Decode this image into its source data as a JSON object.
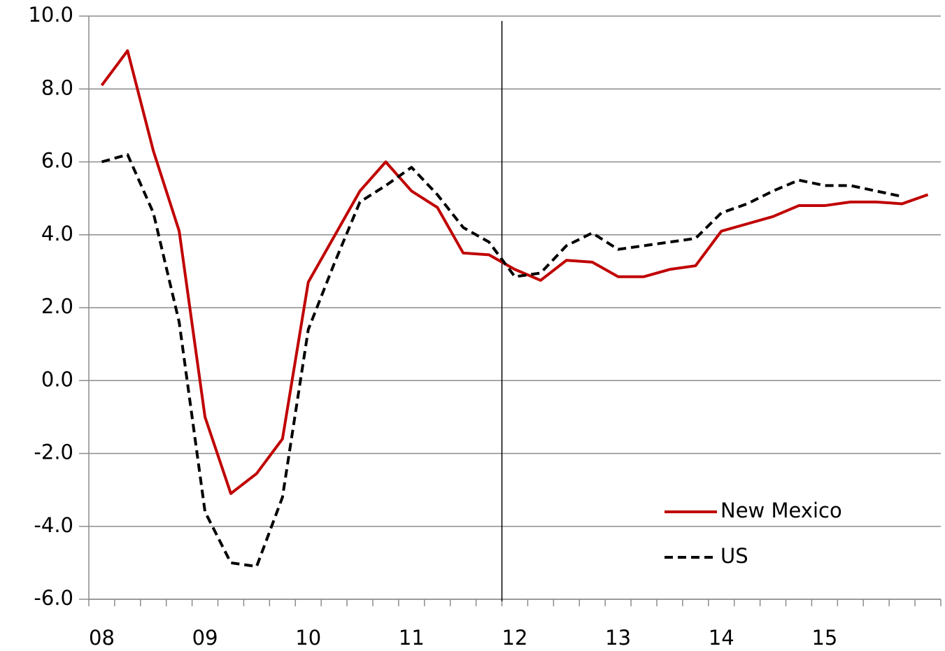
{
  "chart_data": {
    "type": "line",
    "categories": [
      "08",
      null,
      null,
      null,
      "09",
      null,
      null,
      null,
      "10",
      null,
      null,
      null,
      "11",
      null,
      null,
      null,
      "12",
      null,
      null,
      null,
      "13",
      null,
      null,
      null,
      "14",
      null,
      null,
      null,
      "15",
      null,
      null,
      null,
      null
    ],
    "series": [
      {
        "name": "New Mexico",
        "color": "#c00000",
        "dash": false,
        "values": [
          8.1,
          9.05,
          6.3,
          4.1,
          -1.0,
          -3.1,
          -2.55,
          -1.6,
          2.7,
          3.95,
          5.2,
          6.0,
          5.2,
          4.75,
          3.5,
          3.45,
          3.05,
          2.75,
          3.3,
          3.25,
          2.85,
          2.85,
          3.05,
          3.15,
          4.1,
          4.3,
          4.5,
          4.8,
          4.8,
          4.9,
          4.9,
          4.85,
          5.1
        ]
      },
      {
        "name": "US",
        "color": "#000000",
        "dash": true,
        "values": [
          6.0,
          6.2,
          4.6,
          1.6,
          -3.6,
          -5.0,
          -5.1,
          -3.2,
          1.4,
          3.2,
          4.9,
          5.35,
          5.85,
          5.1,
          4.2,
          3.8,
          2.85,
          2.95,
          3.7,
          4.05,
          3.6,
          3.7,
          3.8,
          3.9,
          4.6,
          4.85,
          5.2,
          5.5,
          5.35,
          5.35,
          5.2,
          5.05,
          null
        ]
      }
    ],
    "ylim": [
      -6,
      10
    ],
    "yticks": [
      {
        "value": -6,
        "label": "-6.0"
      },
      {
        "value": -4,
        "label": "-4.0"
      },
      {
        "value": -2,
        "label": "-2.0"
      },
      {
        "value": 0,
        "label": "0.0"
      },
      {
        "value": 2,
        "label": "2.0"
      },
      {
        "value": 4,
        "label": "4.0"
      },
      {
        "value": 6,
        "label": "6.0"
      },
      {
        "value": 8,
        "label": "8.0"
      },
      {
        "value": 10,
        "label": "10.0"
      }
    ],
    "grid": true,
    "legend": "lower right"
  }
}
